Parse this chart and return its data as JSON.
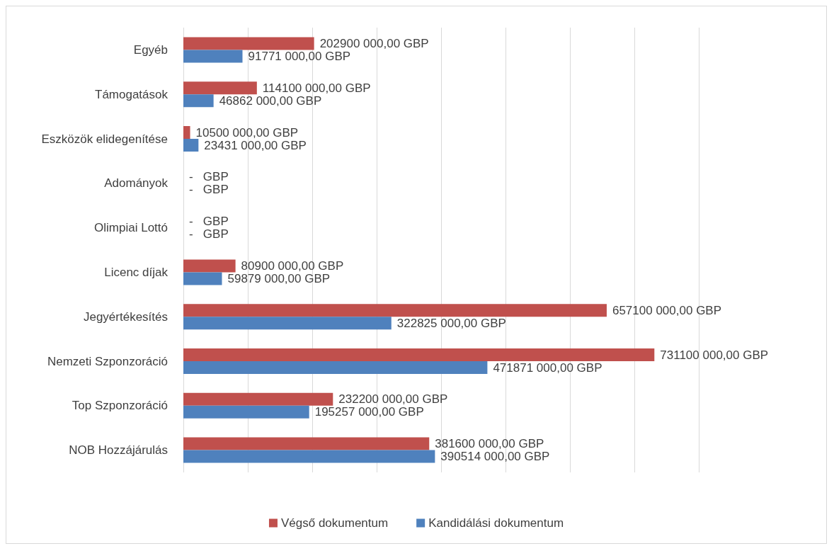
{
  "chart_data": {
    "type": "bar",
    "orientation": "horizontal",
    "categories": [
      "Egyéb",
      "Támogatások",
      "Eszközök elidegenítése",
      "Adományok",
      "Olimpiai Lottó",
      "Licenc díjak",
      "Jegyértékesítés",
      "Nemzeti Szponzoráció",
      "Top Szponzoráció",
      "NOB Hozzájárulás"
    ],
    "series": [
      {
        "name": "Végső dokumentum",
        "color": "#c0504d",
        "values": [
          202900000,
          114100000,
          10500000,
          0,
          0,
          80900000,
          657100000,
          731100000,
          232200000,
          381600000
        ],
        "value_labels": [
          "202900 000,00 GBP",
          "114100 000,00 GBP",
          "10500 000,00 GBP",
          "-   GBP",
          "-   GBP",
          "80900 000,00 GBP",
          "657100 000,00 GBP",
          "731100 000,00 GBP",
          "232200 000,00 GBP",
          "381600 000,00 GBP"
        ]
      },
      {
        "name": "Kandidálási dokumentum",
        "color": "#4f81bd",
        "values": [
          91771000,
          46862000,
          23431000,
          0,
          0,
          59879000,
          322825000,
          471871000,
          195257000,
          390514000
        ],
        "value_labels": [
          "91771 000,00 GBP",
          "46862 000,00 GBP",
          "23431 000,00 GBP",
          "-   GBP",
          "-   GBP",
          "59879 000,00 GBP",
          "322825 000,00 GBP",
          "471871 000,00 GBP",
          "195257 000,00 GBP",
          "390514 000,00 GBP"
        ]
      }
    ],
    "xlim": [
      0,
      800000000
    ],
    "xticks": [
      {
        "value": 0,
        "label": null
      },
      {
        "value": 100000000,
        "label": null
      },
      {
        "value": 200000000,
        "label": null
      },
      {
        "value": 300000000,
        "label": null
      },
      {
        "value": 400000000,
        "label": null
      },
      {
        "value": 500000000,
        "label": null
      },
      {
        "value": 600000000,
        "label": null
      },
      {
        "value": 700000000,
        "label": null
      },
      {
        "value": 800000000,
        "label": null
      }
    ],
    "tick_labels": "y",
    "grid": "x",
    "legend": "bottom"
  }
}
